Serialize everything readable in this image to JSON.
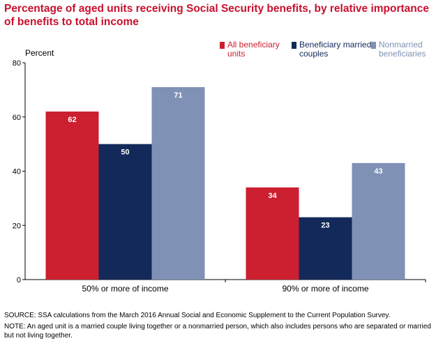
{
  "chart_data": {
    "type": "bar",
    "title": "Percentage of aged units receiving Social Security benefits, by relative importance of benefits to total income",
    "ylabel": "Percent",
    "xlabel": "",
    "ylim": [
      0,
      80
    ],
    "yticks": [
      0,
      20,
      40,
      60,
      80
    ],
    "grid": false,
    "legend_position": "top-right",
    "categories": [
      "50% or more of income",
      "90% or more of income"
    ],
    "series": [
      {
        "name": "All beneficiary units",
        "values": [
          62,
          34
        ],
        "color": "#cc1f2f"
      },
      {
        "name": "Beneficiary married couples",
        "values": [
          50,
          23
        ],
        "color": "#12295a"
      },
      {
        "name": "Nonmarried beneficiaries",
        "values": [
          71,
          43
        ],
        "color": "#7f91b5"
      }
    ],
    "label_colors": [
      "#cc1f2f",
      "#12295a",
      "#7f91b5"
    ]
  },
  "notes": {
    "source": "SOURCE: SSA calculations from the March 2016 Annual Social and Economic Supplement to the Current Population Survey.",
    "note": "NOTE: An aged unit is a married couple living together or a nonmarried person, which also includes persons who are separated or married but not living together."
  },
  "colors": {
    "title": "#c8102e",
    "axis": "#000000",
    "bar_label": "#ffffff"
  }
}
